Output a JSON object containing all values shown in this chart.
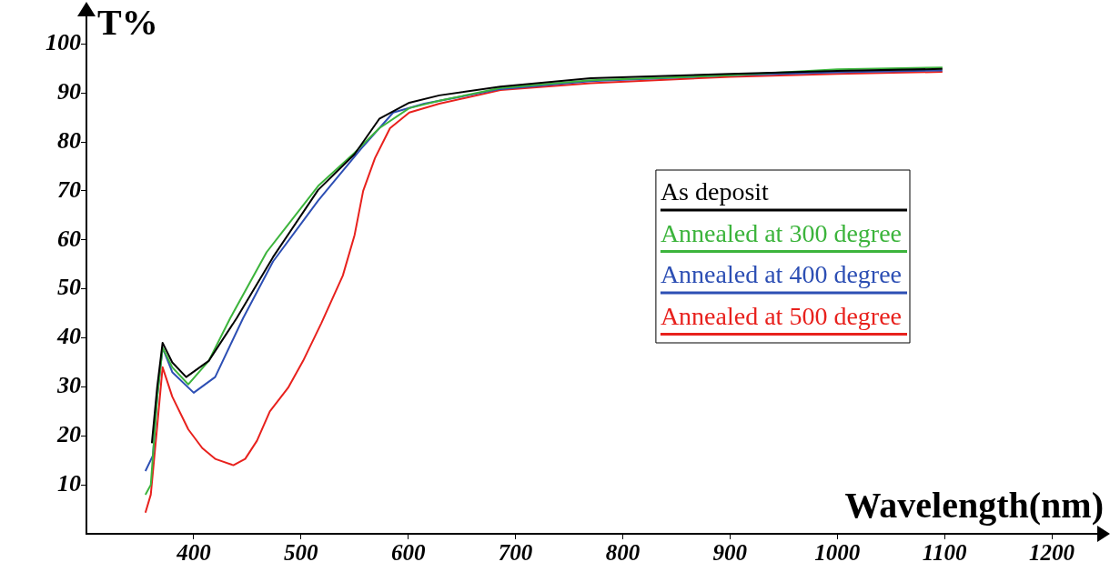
{
  "chart_data": {
    "type": "line",
    "xlabel": "Wavelength(nm)",
    "ylabel": "T%",
    "xlim": [
      300,
      1250
    ],
    "xticks": [
      400,
      500,
      600,
      700,
      800,
      900,
      1000,
      1100,
      1200
    ],
    "ylim": [
      0,
      106
    ],
    "yticks": [
      10,
      20,
      30,
      40,
      50,
      60,
      70,
      80,
      90,
      100
    ],
    "grid": false,
    "legend": "right",
    "marker": "none",
    "line_style": "solid",
    "series": [
      {
        "name": "As deposit",
        "color": "#000000",
        "x": [
          361,
          366,
          371,
          380,
          393,
          414,
          440,
          474,
          516,
          550,
          573,
          601,
          629,
          686,
          770,
          900,
          1000,
          1098
        ],
        "values": [
          18.5,
          30,
          39,
          35,
          32,
          35.3,
          44,
          56.5,
          70.2,
          77.5,
          84.7,
          88,
          89.5,
          91.3,
          93,
          93.9,
          94.5,
          94.9
        ]
      },
      {
        "name": "Annealed at 300 degree",
        "color": "#3cb43c",
        "x": [
          355,
          360,
          366,
          371,
          380,
          395,
          414,
          434,
          468,
          516,
          550,
          573,
          601,
          629,
          686,
          770,
          900,
          1000,
          1098
        ],
        "values": [
          8,
          10,
          28,
          38,
          34,
          30.5,
          35.3,
          44,
          57.5,
          71,
          77.8,
          82.8,
          86.9,
          88.4,
          91,
          92.6,
          93.6,
          94.8,
          95.2
        ]
      },
      {
        "name": "Annealed at 400 degree",
        "color": "#2d4fb4",
        "x": [
          355,
          362,
          366,
          371,
          380,
          400,
          420,
          446,
          474,
          516,
          556,
          586,
          615,
          686,
          770,
          900,
          1000,
          1098
        ],
        "values": [
          12.8,
          16,
          28,
          38,
          33,
          28.8,
          32,
          44,
          55.6,
          68,
          78.6,
          86,
          87.8,
          90.8,
          92.4,
          93.6,
          94.2,
          94.6
        ]
      },
      {
        "name": "Annealed at 500 degree",
        "color": "#e8211d",
        "x": [
          355,
          360,
          366,
          371,
          380,
          395,
          408,
          420,
          437,
          448,
          459,
          471,
          488,
          502,
          519,
          539,
          550,
          558,
          569,
          583,
          601,
          629,
          686,
          770,
          900,
          1000,
          1098
        ],
        "values": [
          4.3,
          8,
          22,
          34,
          28,
          21.3,
          17.5,
          15.3,
          14,
          15.3,
          19,
          25,
          29.8,
          35.3,
          43,
          52.7,
          61,
          70,
          76.7,
          82.8,
          86,
          87.8,
          90.6,
          92,
          93.3,
          93.9,
          94.3
        ]
      }
    ]
  }
}
